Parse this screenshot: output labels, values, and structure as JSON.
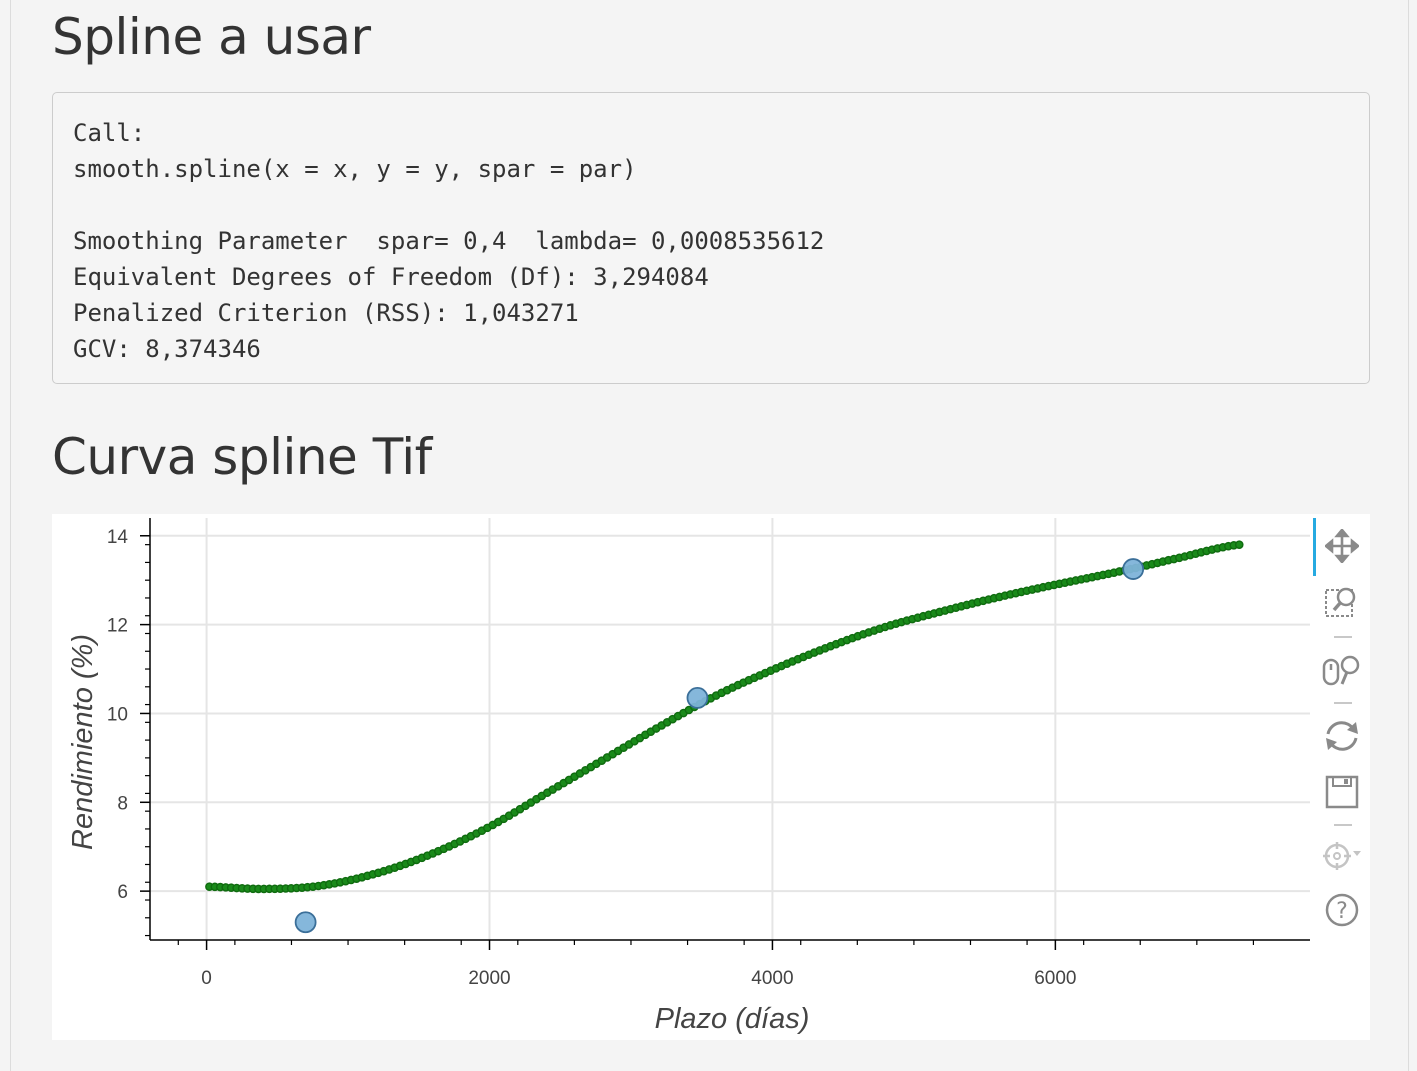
{
  "sections": {
    "spline_title": "Spline a usar",
    "curve_title": "Curva spline Tif"
  },
  "output": {
    "lines": [
      "Call:",
      "smooth.spline(x = x, y = y, spar = par)",
      "",
      "Smoothing Parameter  spar= 0,4  lambda= 0,0008535612",
      "Equivalent Degrees of Freedom (Df): 3,294084",
      "Penalized Criterion (RSS): 1,043271",
      "GCV: 8,374346"
    ]
  },
  "toolbar": {
    "tools": [
      "pan-icon",
      "box-zoom-icon",
      "wheel-zoom-icon",
      "reset-icon",
      "save-icon",
      "crosshair-icon",
      "help-icon"
    ],
    "active_color": "#26aae1"
  },
  "chart_data": {
    "type": "scatter",
    "xlabel": "Plazo (días)",
    "ylabel": "Rendimiento (%)",
    "xlim": [
      -400,
      7800
    ],
    "ylim": [
      4.9,
      14.4
    ],
    "xticks": [
      0,
      2000,
      4000,
      6000
    ],
    "yticks": [
      6,
      8,
      10,
      12,
      14
    ],
    "grid": true,
    "colors": {
      "spline": "#1a8a1a",
      "spline_edge": "#0f6b0f",
      "points": "#7eb3d9",
      "points_edge": "#3b6f99"
    },
    "series": [
      {
        "type": "scatter",
        "points": [
          [
            700,
            5.3
          ],
          [
            3470,
            10.35
          ],
          [
            6550,
            13.25
          ]
        ]
      },
      {
        "type": "line",
        "x_range": [
          20,
          7300
        ],
        "count": 190,
        "x": [
          20,
          400,
          800,
          1200,
          1600,
          2000,
          2400,
          2800,
          3200,
          3600,
          4000,
          4400,
          4800,
          5200,
          5600,
          6000,
          6400,
          6800,
          7300
        ],
        "y": [
          6.1,
          6.05,
          6.12,
          6.4,
          6.85,
          7.45,
          8.2,
          8.95,
          9.7,
          10.4,
          10.98,
          11.5,
          11.95,
          12.3,
          12.62,
          12.9,
          13.16,
          13.45,
          13.8
        ]
      }
    ]
  }
}
